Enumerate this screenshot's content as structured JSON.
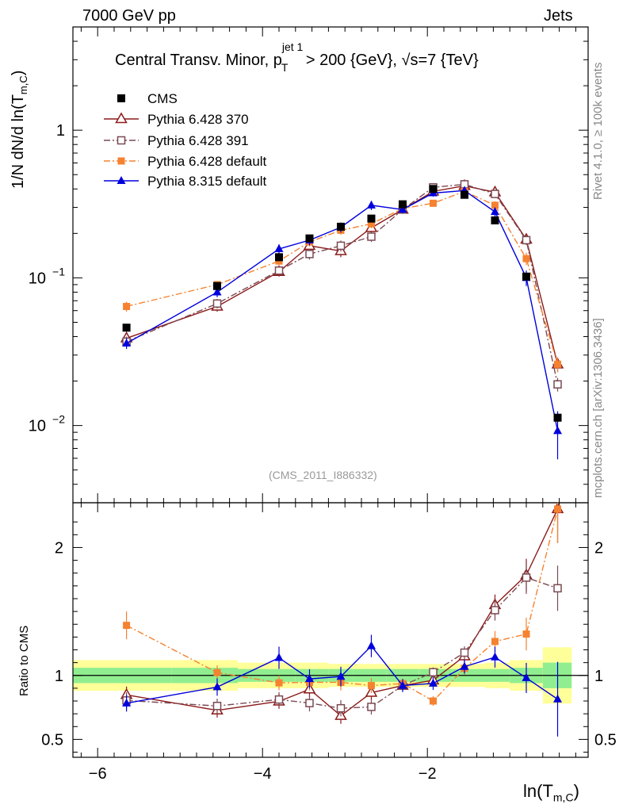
{
  "header": {
    "left": "7000 GeV pp",
    "right": "Jets"
  },
  "side_text": {
    "rivet": "Rivet 4.1.0, ≥ 100k events",
    "mcplots": "mcplots.cern.ch [arXiv:1306.3436]"
  },
  "watermark": "(CMS_2011_I886332)",
  "plot_title": {
    "prefix": "Central Transv. Minor, p",
    "sub": "T",
    "sup": "jet 1",
    "rest": "> 200 {GeV}, √s=7 {TeV}"
  },
  "axis_labels": {
    "y_main_prefix": "1/N    dN/d ln(T",
    "y_main_sub": "m,C",
    "y_main_suffix": ")",
    "y_ratio": "Ratio to CMS",
    "x_prefix": "ln(T",
    "x_sub": "m,C",
    "x_suffix": ")"
  },
  "colors": {
    "cms": "#000000",
    "py6_370": "#8b1a1a",
    "py6_391": "#7a4a52",
    "py6_default": "#f58230",
    "py8": "#0000dd",
    "band_inner": "#90ee90",
    "band_outer": "#ffff99"
  },
  "chart_data": {
    "type": "scatter",
    "x": [
      -5.65,
      -4.55,
      -3.8,
      -3.43,
      -3.05,
      -2.68,
      -2.3,
      -1.93,
      -1.55,
      -1.18,
      -0.8,
      -0.42
    ],
    "xlim": [
      -6.3,
      -0.05
    ],
    "xticks": [
      -6,
      -4,
      -2
    ],
    "xtick_labels": [
      "−6",
      "−4",
      "−2"
    ],
    "ylim_main": [
      0.003,
      5
    ],
    "yticks_main": [
      {
        "value": 1,
        "base": "1",
        "exp": ""
      },
      {
        "value": 0.1,
        "base": "10",
        "exp": "−1"
      },
      {
        "value": 0.01,
        "base": "10",
        "exp": "−2"
      }
    ],
    "ylim_ratio": [
      0.36,
      2.35
    ],
    "yticks_ratio": [
      {
        "value": 0.5,
        "label": "0.5"
      },
      {
        "value": 1,
        "label": "1"
      },
      {
        "value": 2,
        "label": "2"
      }
    ],
    "reference": {
      "name": "CMS",
      "values": [
        0.046,
        0.088,
        0.138,
        0.185,
        0.222,
        0.252,
        0.315,
        0.4,
        0.365,
        0.245,
        0.102,
        0.0113
      ],
      "errors": [
        0.003,
        0.004,
        0.005,
        0.007,
        0.008,
        0.01,
        0.012,
        0.015,
        0.014,
        0.01,
        0.005,
        0.0008
      ]
    },
    "series": [
      {
        "name": "Pythia 6.428 370",
        "key": "py6_370",
        "marker": "open-triangle",
        "dash": "",
        "values": [
          0.039,
          0.064,
          0.11,
          0.165,
          0.152,
          0.218,
          0.29,
          0.385,
          0.42,
          0.38,
          0.182,
          0.026
        ],
        "errors": [
          0.003,
          0.005,
          0.008,
          0.012,
          0.014,
          0.015,
          0.012,
          0.015,
          0.018,
          0.02,
          0.013,
          0.003
        ]
      },
      {
        "name": "Pythia 6.428 391",
        "key": "py6_391",
        "marker": "open-square",
        "dash": "8 3 2 3",
        "values": [
          0.037,
          0.067,
          0.112,
          0.145,
          0.165,
          0.19,
          0.29,
          0.41,
          0.43,
          0.37,
          0.18,
          0.019
        ],
        "errors": [
          0.003,
          0.005,
          0.008,
          0.012,
          0.014,
          0.015,
          0.012,
          0.015,
          0.018,
          0.02,
          0.013,
          0.002
        ]
      },
      {
        "name": "Pythia 6.428 default",
        "key": "py6_default",
        "marker": "filled-square",
        "dash": "8 3 2 3",
        "values": [
          0.064,
          0.09,
          0.13,
          0.175,
          0.21,
          0.232,
          0.295,
          0.32,
          0.385,
          0.31,
          0.135,
          0.026
        ],
        "errors": [
          0.005,
          0.005,
          0.008,
          0.012,
          0.014,
          0.015,
          0.012,
          0.015,
          0.018,
          0.02,
          0.013,
          0.003
        ]
      },
      {
        "name": "Pythia 8.315 default",
        "key": "py8",
        "marker": "filled-triangle",
        "dash": "",
        "values": [
          0.036,
          0.08,
          0.157,
          0.18,
          0.22,
          0.31,
          0.29,
          0.375,
          0.39,
          0.28,
          0.1,
          0.0092
        ],
        "errors": [
          0.003,
          0.006,
          0.012,
          0.014,
          0.017,
          0.022,
          0.016,
          0.02,
          0.02,
          0.02,
          0.012,
          0.0033
        ]
      }
    ],
    "ratio_band": {
      "edges": [
        -6.3,
        -5.1,
        -4.3,
        -3.6,
        -3.2,
        -2.9,
        -2.5,
        -2.1,
        -1.7,
        -1.3,
        -1.0,
        -0.6,
        -0.25
      ],
      "inner": [
        0.06,
        0.06,
        0.05,
        0.05,
        0.05,
        0.05,
        0.05,
        0.05,
        0.05,
        0.05,
        0.06,
        0.1
      ],
      "outer": [
        0.12,
        0.12,
        0.1,
        0.1,
        0.09,
        0.09,
        0.09,
        0.09,
        0.09,
        0.1,
        0.12,
        0.22
      ]
    }
  }
}
